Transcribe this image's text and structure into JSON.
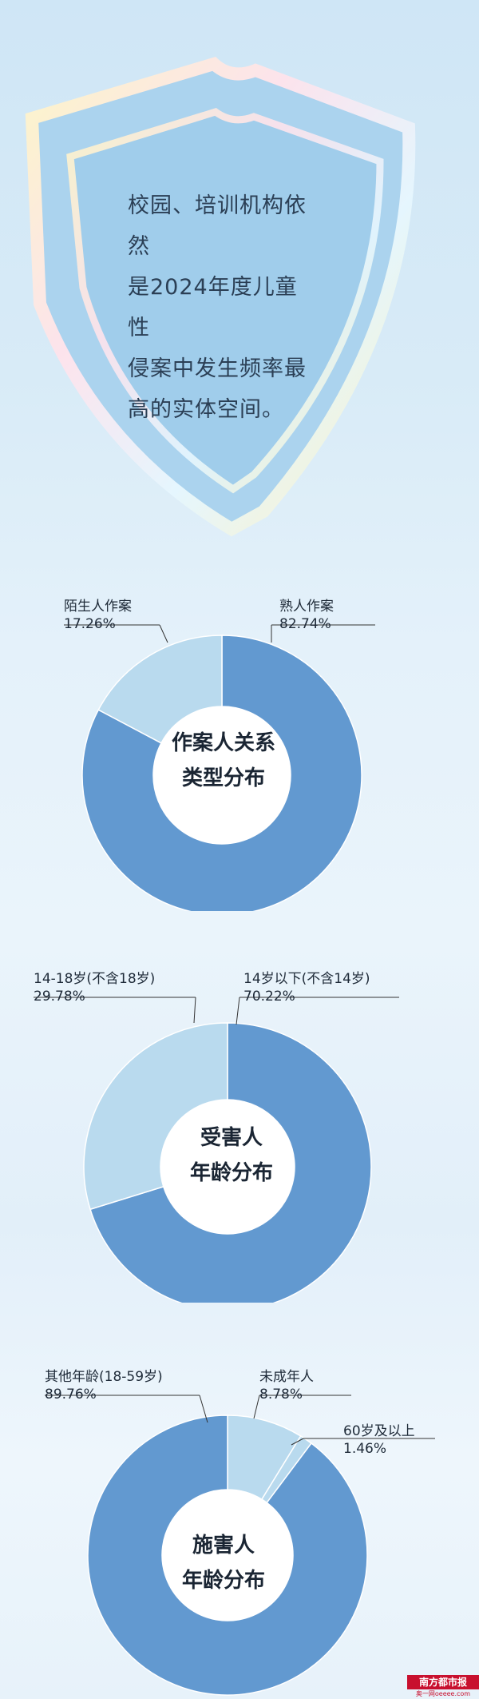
{
  "intro_text": "校园、培训机构依然是2024年度儿童性侵案中发生频率最高的实体空间。",
  "intro_lines": [
    "校园、培训机构依然",
    "是2024年度儿童性",
    "侵案中发生频率最",
    "高的实体空间。"
  ],
  "colors": {
    "dark": "#6299d0",
    "light": "#b9daee",
    "center": "#ffffff"
  },
  "chart_data": [
    {
      "type": "pie",
      "title_lines": [
        "作案人关系",
        "类型分布"
      ],
      "series": [
        {
          "label_line1": "熟人作案",
          "label_line2": "82.74%",
          "name": "熟人作案",
          "value": 82.74,
          "color": "dark"
        },
        {
          "label_line1": "陌生人作案",
          "label_line2": "17.26%",
          "name": "陌生人作案",
          "value": 17.26,
          "color": "light"
        }
      ]
    },
    {
      "type": "pie",
      "title_lines": [
        "受害人",
        "年龄分布"
      ],
      "series": [
        {
          "label_line1": "14岁以下(不含14岁)",
          "label_line2": "70.22%",
          "name": "14岁以下(不含14岁)",
          "value": 70.22,
          "color": "dark"
        },
        {
          "label_line1": "14-18岁(不含18岁)",
          "label_line2": "29.78%",
          "name": "14-18岁(不含18岁)",
          "value": 29.78,
          "color": "light"
        }
      ]
    },
    {
      "type": "pie",
      "title_lines": [
        "施害人",
        "年龄分布"
      ],
      "series": [
        {
          "label_line1": "未成年人",
          "label_line2": "8.78%",
          "name": "未成年人",
          "value": 8.78,
          "color": "light"
        },
        {
          "label_line1": "60岁及以上",
          "label_line2": "1.46%",
          "name": "60岁及以上",
          "value": 1.46,
          "color": "light"
        },
        {
          "label_line1": "其他年龄(18-59岁)",
          "label_line2": "89.76%",
          "name": "其他年龄(18-59岁)",
          "value": 89.76,
          "color": "dark"
        }
      ]
    }
  ],
  "brand": {
    "name": "南方都市报",
    "sub": "奥一网oeeee.com"
  }
}
